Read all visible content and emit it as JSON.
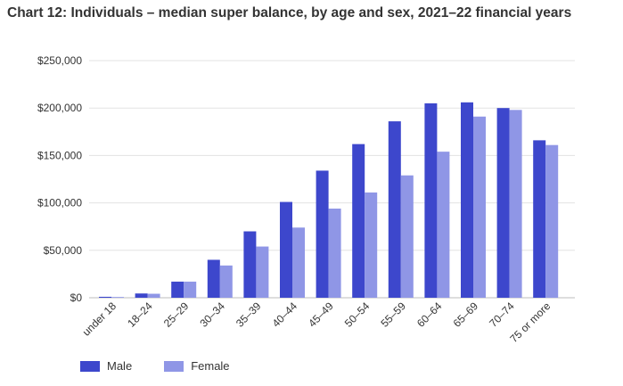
{
  "chart_data": {
    "type": "bar",
    "title": "Chart 12: Individuals – median super balance, by age and sex, 2021–22 financial years",
    "categories": [
      "under 18",
      "18–24",
      "25–29",
      "30–34",
      "35–39",
      "40–44",
      "45–49",
      "50–54",
      "55–59",
      "60–64",
      "65–69",
      "70–74",
      "75 or more"
    ],
    "series": [
      {
        "name": "Male",
        "color": "#3d47cc",
        "values": [
          1000,
          4500,
          17000,
          40000,
          70000,
          101000,
          134000,
          162000,
          186000,
          205000,
          206000,
          200000,
          166000
        ]
      },
      {
        "name": "Female",
        "color": "#8f96e6",
        "values": [
          800,
          4200,
          17000,
          34000,
          54000,
          74000,
          94000,
          111000,
          129000,
          154000,
          191000,
          198000,
          161000
        ]
      }
    ],
    "ylim": [
      0,
      250000
    ],
    "yticks": [
      "$0",
      "$50,000",
      "$100,000",
      "$150,000",
      "$200,000",
      "$250,000"
    ],
    "grid": true,
    "legend": "bottom-left"
  }
}
